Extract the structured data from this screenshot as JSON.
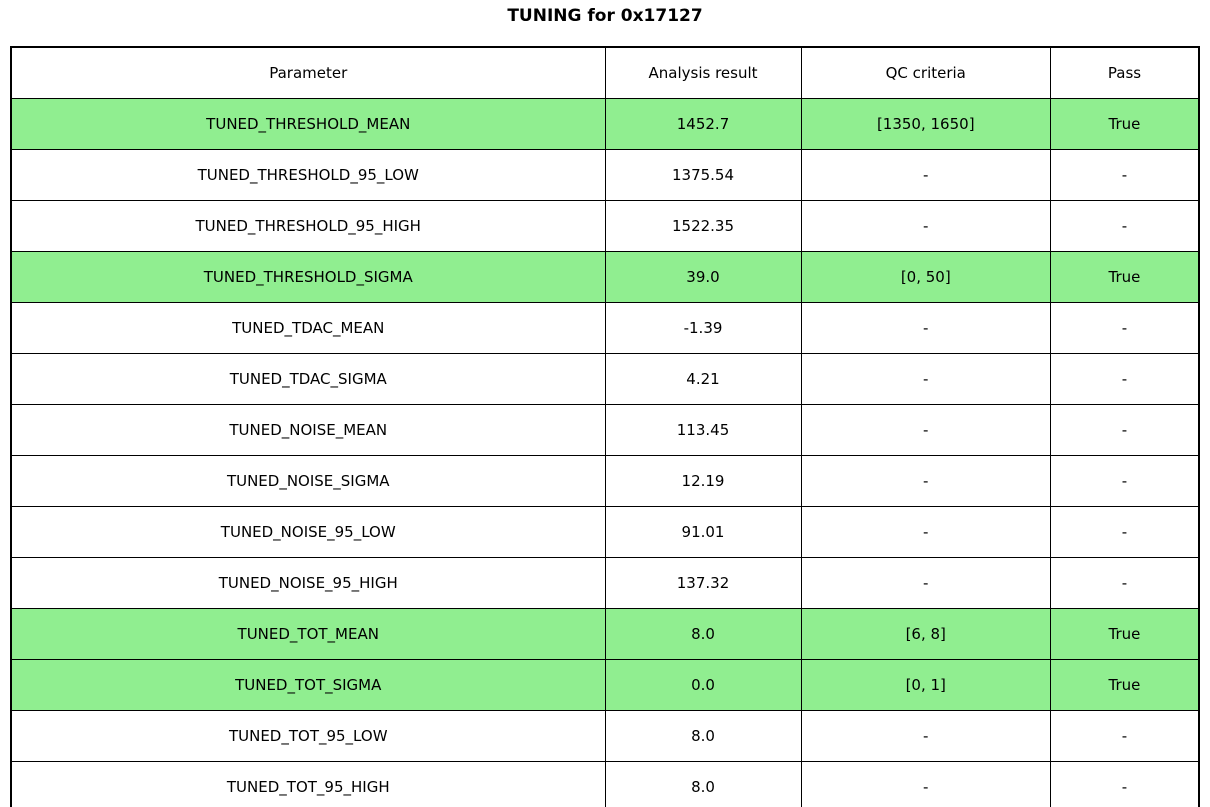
{
  "title": "TUNING for 0x17127",
  "colors": {
    "highlight_green": "#90EE90",
    "border": "#000000",
    "background": "#FFFFFF",
    "text": "#000000"
  },
  "chart_data": {
    "type": "table",
    "title": "TUNING for 0x17127",
    "columns": [
      "Parameter",
      "Analysis result",
      "QC criteria",
      "Pass"
    ],
    "legend_note": "rows with highlighted=true are rendered with green background meaning QC passed",
    "rows": [
      {
        "parameter": "TUNED_THRESHOLD_MEAN",
        "analysis_result": "1452.7",
        "qc_criteria": "[1350, 1650]",
        "pass": "True",
        "highlighted": true
      },
      {
        "parameter": "TUNED_THRESHOLD_95_LOW",
        "analysis_result": "1375.54",
        "qc_criteria": "-",
        "pass": "-",
        "highlighted": false
      },
      {
        "parameter": "TUNED_THRESHOLD_95_HIGH",
        "analysis_result": "1522.35",
        "qc_criteria": "-",
        "pass": "-",
        "highlighted": false
      },
      {
        "parameter": "TUNED_THRESHOLD_SIGMA",
        "analysis_result": "39.0",
        "qc_criteria": "[0, 50]",
        "pass": "True",
        "highlighted": true
      },
      {
        "parameter": "TUNED_TDAC_MEAN",
        "analysis_result": "-1.39",
        "qc_criteria": "-",
        "pass": "-",
        "highlighted": false
      },
      {
        "parameter": "TUNED_TDAC_SIGMA",
        "analysis_result": "4.21",
        "qc_criteria": "-",
        "pass": "-",
        "highlighted": false
      },
      {
        "parameter": "TUNED_NOISE_MEAN",
        "analysis_result": "113.45",
        "qc_criteria": "-",
        "pass": "-",
        "highlighted": false
      },
      {
        "parameter": "TUNED_NOISE_SIGMA",
        "analysis_result": "12.19",
        "qc_criteria": "-",
        "pass": "-",
        "highlighted": false
      },
      {
        "parameter": "TUNED_NOISE_95_LOW",
        "analysis_result": "91.01",
        "qc_criteria": "-",
        "pass": "-",
        "highlighted": false
      },
      {
        "parameter": "TUNED_NOISE_95_HIGH",
        "analysis_result": "137.32",
        "qc_criteria": "-",
        "pass": "-",
        "highlighted": false
      },
      {
        "parameter": "TUNED_TOT_MEAN",
        "analysis_result": "8.0",
        "qc_criteria": "[6, 8]",
        "pass": "True",
        "highlighted": true
      },
      {
        "parameter": "TUNED_TOT_SIGMA",
        "analysis_result": "0.0",
        "qc_criteria": "[0, 1]",
        "pass": "True",
        "highlighted": true
      },
      {
        "parameter": "TUNED_TOT_95_LOW",
        "analysis_result": "8.0",
        "qc_criteria": "-",
        "pass": "-",
        "highlighted": false
      },
      {
        "parameter": "TUNED_TOT_95_HIGH",
        "analysis_result": "8.0",
        "qc_criteria": "-",
        "pass": "-",
        "highlighted": false
      }
    ]
  }
}
